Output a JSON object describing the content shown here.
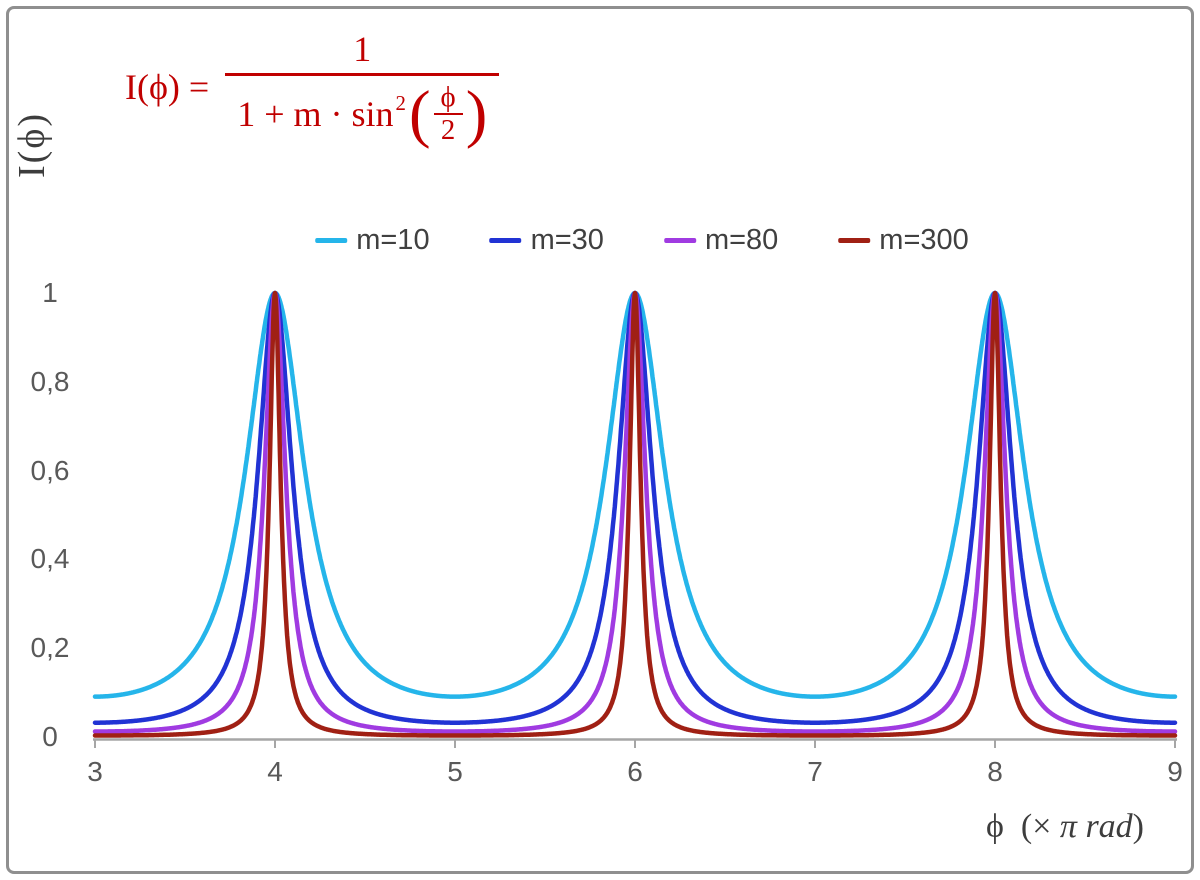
{
  "chart": {
    "formula": {
      "lhs": "I(ϕ) =",
      "numerator": "1",
      "den_text": "1 + m · sin",
      "den_exp": "2",
      "inner_num": "ϕ",
      "inner_den": "2"
    },
    "y_label": "I(ϕ)",
    "x_label": {
      "prefix": "ϕ  (× ",
      "italic": "π rad",
      "suffix": ")"
    },
    "x_ticks": [
      "3",
      "4",
      "5",
      "6",
      "7",
      "8",
      "9"
    ],
    "y_ticks": [
      "1",
      "0,8",
      "0,6",
      "0,4",
      "0,2",
      "0"
    ]
  },
  "chart_data": {
    "type": "line",
    "title": "",
    "function": "I(phi) = 1 / (1 + m * sin^2(phi / 2))",
    "x_axis": {
      "label": "ϕ (× π rad)",
      "min": 3,
      "max": 9,
      "ticks": [
        3,
        4,
        5,
        6,
        7,
        8,
        9
      ],
      "unit": "π rad"
    },
    "y_axis": {
      "label": "I(ϕ)",
      "min": 0,
      "max": 1,
      "ticks": [
        0,
        0.2,
        0.4,
        0.6,
        0.8,
        1
      ],
      "tick_labels": [
        "0",
        "0,2",
        "0,4",
        "0,6",
        "0,8",
        "1"
      ]
    },
    "series": [
      {
        "name": "m=10",
        "m": 10,
        "color": "#25B5EA"
      },
      {
        "name": "m=30",
        "m": 30,
        "color": "#2133D4"
      },
      {
        "name": "m=80",
        "m": 80,
        "color": "#A03BE1"
      },
      {
        "name": "m=300",
        "m": 300,
        "color": "#A02014"
      }
    ],
    "peaks_at_x": [
      4,
      6,
      8
    ],
    "peak_value": 1,
    "value_at_edges": {
      "m=10": 0.0909,
      "m=30": 0.0323,
      "m=80": 0.0123,
      "m=300": 0.0033
    },
    "grid": false,
    "legend_position": "top-center",
    "formula_color": "#C00000",
    "axis_color": "#A6A6A6",
    "tick_label_color": "#595959",
    "background": "#FFFFFF",
    "sample_step": 0.0025
  }
}
